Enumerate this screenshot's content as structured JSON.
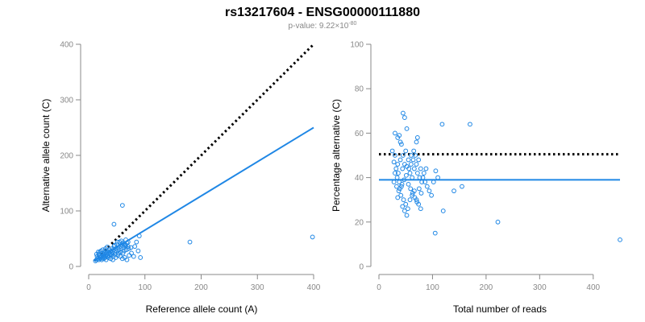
{
  "title": "rs13217604 - ENSG00000111880",
  "subtitle": {
    "prefix": "p-value: 9.22×10",
    "exponent": "-80"
  },
  "colors": {
    "points": "#1f87e5",
    "fit": "#1f87e5",
    "reference": "#000000",
    "axes": "#888888"
  },
  "chart_data": [
    {
      "type": "scatter",
      "xlabel": "Reference allele count (A)",
      "ylabel": "Alternative allele count (C)",
      "xlim": [
        0,
        400
      ],
      "ylim": [
        0,
        400
      ],
      "xticks": [
        0,
        100,
        200,
        300,
        400
      ],
      "yticks": [
        0,
        100,
        200,
        300,
        400
      ],
      "grid": false,
      "reference_line": {
        "from": [
          10,
          10
        ],
        "to": [
          400,
          400
        ],
        "style": "dotted"
      },
      "fit_line": {
        "from": [
          10,
          10
        ],
        "to": [
          400,
          250
        ],
        "style": "solid"
      },
      "points": [
        [
          12,
          10
        ],
        [
          14,
          12
        ],
        [
          16,
          14
        ],
        [
          18,
          12
        ],
        [
          20,
          16
        ],
        [
          22,
          18
        ],
        [
          24,
          15
        ],
        [
          26,
          20
        ],
        [
          28,
          22
        ],
        [
          30,
          18
        ],
        [
          32,
          24
        ],
        [
          34,
          20
        ],
        [
          36,
          26
        ],
        [
          38,
          22
        ],
        [
          40,
          28
        ],
        [
          42,
          24
        ],
        [
          44,
          30
        ],
        [
          46,
          26
        ],
        [
          48,
          32
        ],
        [
          50,
          28
        ],
        [
          52,
          34
        ],
        [
          54,
          30
        ],
        [
          56,
          36
        ],
        [
          58,
          32
        ],
        [
          60,
          38
        ],
        [
          62,
          34
        ],
        [
          64,
          40
        ],
        [
          66,
          36
        ],
        [
          68,
          42
        ],
        [
          70,
          44
        ],
        [
          15,
          18
        ],
        [
          18,
          22
        ],
        [
          20,
          26
        ],
        [
          22,
          28
        ],
        [
          25,
          30
        ],
        [
          28,
          26
        ],
        [
          30,
          32
        ],
        [
          33,
          35
        ],
        [
          36,
          30
        ],
        [
          40,
          20
        ],
        [
          44,
          18
        ],
        [
          48,
          16
        ],
        [
          52,
          20
        ],
        [
          56,
          18
        ],
        [
          60,
          14
        ],
        [
          64,
          16
        ],
        [
          68,
          12
        ],
        [
          72,
          20
        ],
        [
          76,
          24
        ],
        [
          80,
          18
        ],
        [
          14,
          22
        ],
        [
          17,
          26
        ],
        [
          19,
          20
        ],
        [
          21,
          14
        ],
        [
          23,
          12
        ],
        [
          27,
          14
        ],
        [
          31,
          12
        ],
        [
          35,
          16
        ],
        [
          39,
          14
        ],
        [
          43,
          12
        ],
        [
          45,
          36
        ],
        [
          50,
          40
        ],
        [
          55,
          44
        ],
        [
          60,
          42
        ],
        [
          65,
          38
        ],
        [
          70,
          36
        ],
        [
          26,
          18
        ],
        [
          29,
          16
        ],
        [
          34,
          18
        ],
        [
          37,
          20
        ],
        [
          41,
          22
        ],
        [
          47,
          22
        ],
        [
          53,
          24
        ],
        [
          57,
          26
        ],
        [
          61,
          24
        ],
        [
          63,
          28
        ],
        [
          67,
          30
        ],
        [
          71,
          32
        ],
        [
          75,
          34
        ],
        [
          82,
          36
        ],
        [
          24,
          24
        ],
        [
          32,
          28
        ],
        [
          42,
          32
        ],
        [
          46,
          38
        ],
        [
          51,
          44
        ],
        [
          58,
          46
        ],
        [
          66,
          48
        ],
        [
          60,
          110
        ],
        [
          45,
          76
        ],
        [
          90,
          55
        ],
        [
          85,
          44
        ],
        [
          88,
          28
        ],
        [
          92,
          16
        ],
        [
          180,
          44
        ],
        [
          398,
          53
        ]
      ]
    },
    {
      "type": "scatter",
      "xlabel": "Total number of reads",
      "ylabel": "Percentage alternative (C)",
      "xlim": [
        0,
        450
      ],
      "ylim": [
        0,
        100
      ],
      "xticks": [
        0,
        100,
        200,
        300,
        400
      ],
      "yticks": [
        0,
        20,
        40,
        60,
        80,
        100
      ],
      "grid": false,
      "reference_line": {
        "from": [
          0,
          50.5
        ],
        "to": [
          450,
          50.5
        ],
        "style": "dotted"
      },
      "fit_line": {
        "from": [
          0,
          39
        ],
        "to": [
          450,
          39
        ],
        "style": "solid"
      },
      "points": [
        [
          45,
          69
        ],
        [
          48,
          67
        ],
        [
          52,
          62
        ],
        [
          30,
          60
        ],
        [
          35,
          58
        ],
        [
          40,
          56
        ],
        [
          42,
          55
        ],
        [
          38,
          59
        ],
        [
          70,
          56
        ],
        [
          72,
          58
        ],
        [
          65,
          52
        ],
        [
          60,
          50
        ],
        [
          55,
          48
        ],
        [
          50,
          52
        ],
        [
          45,
          50
        ],
        [
          40,
          48
        ],
        [
          35,
          46
        ],
        [
          30,
          50
        ],
        [
          28,
          47
        ],
        [
          25,
          52
        ],
        [
          32,
          44
        ],
        [
          36,
          42
        ],
        [
          44,
          44
        ],
        [
          48,
          46
        ],
        [
          52,
          45
        ],
        [
          56,
          44
        ],
        [
          58,
          42
        ],
        [
          62,
          40
        ],
        [
          66,
          44
        ],
        [
          70,
          46
        ],
        [
          74,
          48
        ],
        [
          78,
          44
        ],
        [
          82,
          40
        ],
        [
          86,
          38
        ],
        [
          90,
          36
        ],
        [
          94,
          34
        ],
        [
          98,
          32
        ],
        [
          102,
          38
        ],
        [
          106,
          43
        ],
        [
          110,
          40
        ],
        [
          28,
          38
        ],
        [
          33,
          36
        ],
        [
          37,
          34
        ],
        [
          41,
          32
        ],
        [
          46,
          30
        ],
        [
          50,
          28
        ],
        [
          54,
          26
        ],
        [
          58,
          30
        ],
        [
          62,
          32
        ],
        [
          66,
          34
        ],
        [
          70,
          30
        ],
        [
          74,
          28
        ],
        [
          78,
          26
        ],
        [
          44,
          27
        ],
        [
          48,
          25
        ],
        [
          52,
          23
        ],
        [
          35,
          31
        ],
        [
          39,
          35
        ],
        [
          43,
          37
        ],
        [
          47,
          39
        ],
        [
          51,
          41
        ],
        [
          55,
          37
        ],
        [
          59,
          35
        ],
        [
          63,
          33
        ],
        [
          67,
          31
        ],
        [
          71,
          29
        ],
        [
          75,
          35
        ],
        [
          79,
          33
        ],
        [
          30,
          42
        ],
        [
          34,
          40
        ],
        [
          38,
          38
        ],
        [
          42,
          36
        ],
        [
          60,
          46
        ],
        [
          64,
          48
        ],
        [
          68,
          50
        ],
        [
          72,
          42
        ],
        [
          76,
          40
        ],
        [
          80,
          38
        ],
        [
          84,
          42
        ],
        [
          88,
          44
        ],
        [
          118,
          64
        ],
        [
          170,
          64
        ],
        [
          105,
          15
        ],
        [
          120,
          25
        ],
        [
          155,
          36
        ],
        [
          140,
          34
        ],
        [
          222,
          20
        ],
        [
          450,
          12
        ]
      ]
    }
  ]
}
